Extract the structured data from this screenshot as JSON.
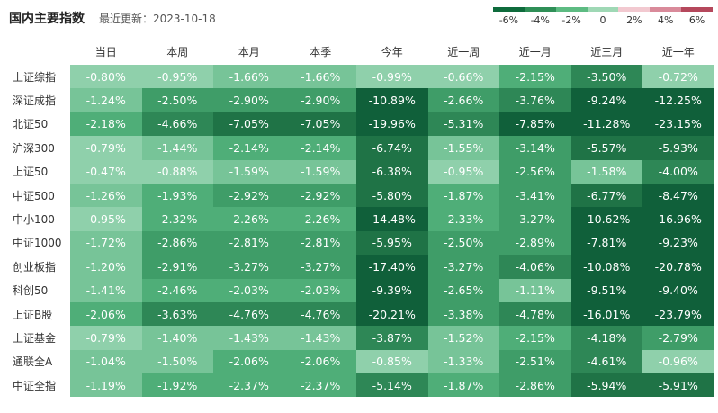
{
  "title": "国内主要指数",
  "updated": "最近更新：2023-10-18",
  "legend": {
    "labels": [
      "-6%",
      "-4%",
      "-2%",
      "0",
      "2%",
      "4%",
      "6%"
    ],
    "colors": [
      "#0e6b3c",
      "#2f8f57",
      "#5dbb82",
      "#9fd8b5",
      "#f2c9d0",
      "#d98a9a",
      "#b5485c"
    ]
  },
  "chart_data": {
    "type": "heatmap",
    "title": "国内主要指数",
    "columns": [
      "当日",
      "本周",
      "本月",
      "本季",
      "今年",
      "近一周",
      "近一月",
      "近三月",
      "近一年"
    ],
    "rows": [
      {
        "name": "上证综指",
        "values": [
          "-0.80%",
          "-0.95%",
          "-1.66%",
          "-1.66%",
          "-0.99%",
          "-0.66%",
          "-2.15%",
          "-3.50%",
          "-0.72%"
        ]
      },
      {
        "name": "深证成指",
        "values": [
          "-1.24%",
          "-2.50%",
          "-2.90%",
          "-2.90%",
          "-10.89%",
          "-2.66%",
          "-3.76%",
          "-9.24%",
          "-12.25%"
        ]
      },
      {
        "name": "北证50",
        "values": [
          "-2.18%",
          "-4.66%",
          "-7.05%",
          "-7.05%",
          "-19.96%",
          "-5.31%",
          "-7.85%",
          "-11.28%",
          "-23.15%"
        ]
      },
      {
        "name": "沪深300",
        "values": [
          "-0.79%",
          "-1.44%",
          "-2.14%",
          "-2.14%",
          "-6.74%",
          "-1.55%",
          "-3.14%",
          "-5.57%",
          "-5.93%"
        ]
      },
      {
        "name": "上证50",
        "values": [
          "-0.47%",
          "-0.88%",
          "-1.59%",
          "-1.59%",
          "-6.38%",
          "-0.95%",
          "-2.56%",
          "-1.58%",
          "-4.00%"
        ]
      },
      {
        "name": "中证500",
        "values": [
          "-1.26%",
          "-1.93%",
          "-2.92%",
          "-2.92%",
          "-5.80%",
          "-1.87%",
          "-3.41%",
          "-6.77%",
          "-8.47%"
        ]
      },
      {
        "name": "中小100",
        "values": [
          "-0.95%",
          "-2.32%",
          "-2.26%",
          "-2.26%",
          "-14.48%",
          "-2.33%",
          "-3.27%",
          "-10.62%",
          "-16.96%"
        ]
      },
      {
        "name": "中证1000",
        "values": [
          "-1.72%",
          "-2.86%",
          "-2.81%",
          "-2.81%",
          "-5.95%",
          "-2.50%",
          "-2.89%",
          "-7.81%",
          "-9.23%"
        ]
      },
      {
        "name": "创业板指",
        "values": [
          "-1.20%",
          "-2.91%",
          "-3.27%",
          "-3.27%",
          "-17.40%",
          "-3.27%",
          "-4.06%",
          "-10.08%",
          "-20.78%"
        ]
      },
      {
        "name": "科创50",
        "values": [
          "-1.41%",
          "-2.46%",
          "-2.03%",
          "-2.03%",
          "-9.39%",
          "-2.65%",
          "-1.11%",
          "-9.51%",
          "-9.40%"
        ]
      },
      {
        "name": "上证B股",
        "values": [
          "-2.06%",
          "-3.63%",
          "-4.76%",
          "-4.76%",
          "-20.21%",
          "-3.38%",
          "-4.78%",
          "-16.01%",
          "-23.79%"
        ]
      },
      {
        "name": "上证基金",
        "values": [
          "-0.79%",
          "-1.40%",
          "-1.43%",
          "-1.43%",
          "-3.87%",
          "-1.52%",
          "-2.15%",
          "-4.18%",
          "-2.79%"
        ]
      },
      {
        "name": "通联全A",
        "values": [
          "-1.04%",
          "-1.50%",
          "-2.06%",
          "-2.06%",
          "-0.85%",
          "-1.33%",
          "-2.51%",
          "-4.61%",
          "-0.96%"
        ]
      },
      {
        "name": "中证全指",
        "values": [
          "-1.19%",
          "-1.92%",
          "-2.37%",
          "-2.37%",
          "-5.14%",
          "-1.87%",
          "-2.86%",
          "-5.94%",
          "-5.91%"
        ]
      }
    ]
  }
}
